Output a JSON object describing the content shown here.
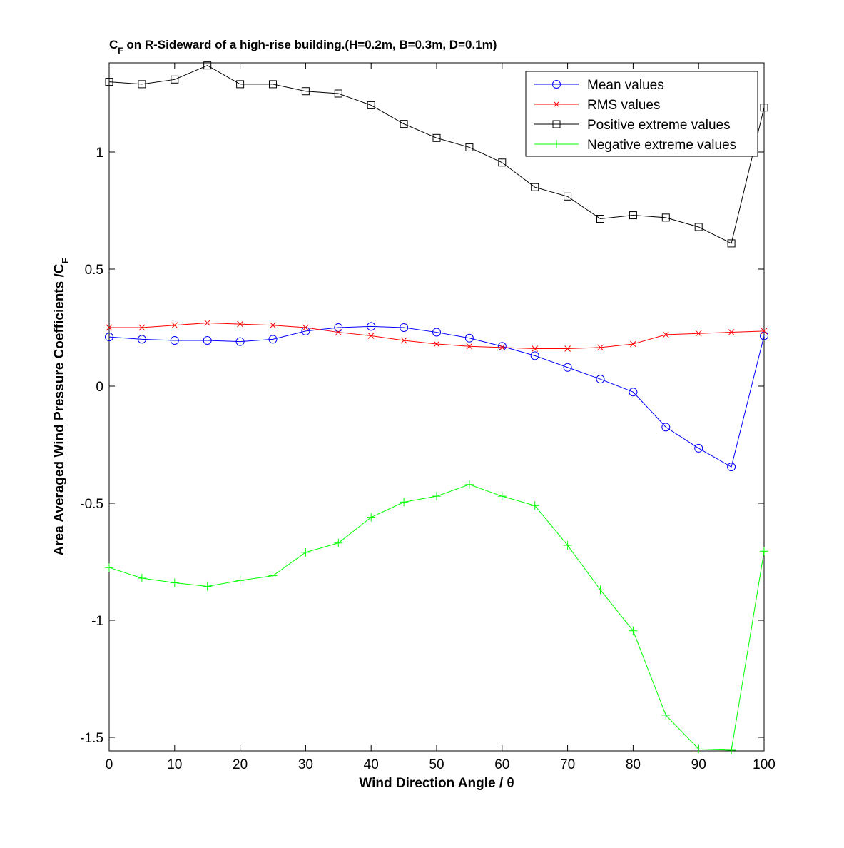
{
  "chart_data": {
    "type": "line",
    "title_prefix": "C",
    "title_sub": "F",
    "title_rest": " on R-Sideward of a high-rise building.(H=0.2m, B=0.3m, D=0.1m)",
    "xlabel": "Wind Direction Angle  / θ",
    "ylabel_main": "Area Averaged Wind Pressure Coefficients /C",
    "ylabel_sub": "F",
    "xlim": [
      0,
      100
    ],
    "ylim": [
      -1.55,
      1.37
    ],
    "xticks": [
      0,
      10,
      20,
      30,
      40,
      50,
      60,
      70,
      80,
      90,
      100
    ],
    "yticks": [
      -1.5,
      -1,
      -0.5,
      0,
      0.5,
      1
    ],
    "ytick_labels": [
      "-1.5",
      "-1",
      "-0.5",
      "0",
      "0.5",
      "1"
    ],
    "grid": false,
    "legend_position": "top-right",
    "x": [
      0,
      5,
      10,
      15,
      20,
      25,
      30,
      35,
      40,
      45,
      50,
      55,
      60,
      65,
      70,
      75,
      80,
      85,
      90,
      95,
      100
    ],
    "series": [
      {
        "name": "Mean values",
        "color": "#0000ff",
        "marker": "circle",
        "values": [
          0.21,
          0.2,
          0.195,
          0.195,
          0.19,
          0.2,
          0.235,
          0.25,
          0.255,
          0.25,
          0.23,
          0.205,
          0.17,
          0.13,
          0.08,
          0.03,
          -0.025,
          -0.175,
          -0.265,
          -0.345,
          0.215
        ]
      },
      {
        "name": "RMS values",
        "color": "#ff0000",
        "marker": "x",
        "values": [
          0.25,
          0.25,
          0.26,
          0.27,
          0.265,
          0.26,
          0.25,
          0.23,
          0.215,
          0.195,
          0.18,
          0.17,
          0.165,
          0.16,
          0.16,
          0.165,
          0.18,
          0.22,
          0.225,
          0.23,
          0.235
        ]
      },
      {
        "name": "Positive extreme values",
        "color": "#000000",
        "marker": "square",
        "values": [
          1.3,
          1.29,
          1.31,
          1.37,
          1.29,
          1.29,
          1.26,
          1.25,
          1.2,
          1.12,
          1.06,
          1.02,
          0.955,
          0.85,
          0.81,
          0.715,
          0.73,
          0.72,
          0.68,
          0.61,
          1.19
        ]
      },
      {
        "name": "Negative extreme values",
        "color": "#00ff00",
        "marker": "plus",
        "values": [
          -0.775,
          -0.82,
          -0.84,
          -0.855,
          -0.83,
          -0.81,
          -0.71,
          -0.67,
          -0.56,
          -0.495,
          -0.47,
          -0.42,
          -0.47,
          -0.51,
          -0.68,
          -0.87,
          -1.045,
          -1.405,
          -1.55,
          -1.555,
          -0.705
        ]
      }
    ]
  }
}
